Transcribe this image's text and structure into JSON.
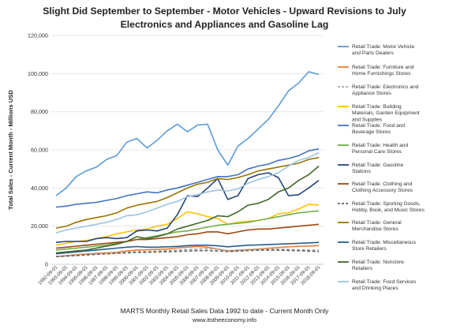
{
  "title_line1": "Slight Did September to September - Motor Vehicles - Upward Revisions to July",
  "title_line2": "Electronics and Appliances and Gasoline Lag",
  "footer_line1": "MARTS Monthly Retail Sales Data 1992 to date - Current Month Only",
  "footer_line2": "www.itstheeconomy.info",
  "chart_data": {
    "type": "line",
    "title": "Slight Did September to September - Motor Vehicles - Upward Revisions to July Electronics and Appliances and Gasoline Lag",
    "xlabel": "",
    "ylabel": "Total Sales - Current Month - Millions USD",
    "ylim": [
      0,
      120000
    ],
    "yticks": [
      "0",
      "20,000",
      "40,000",
      "60,000",
      "80,000",
      "100,000",
      "120,000"
    ],
    "grid": "horizontal",
    "legend_placement": "right",
    "x": [
      "1992-09-01",
      "1993-09-01",
      "1994-09-01",
      "1995-09-01",
      "1996-09-01",
      "1997-09-01",
      "1998-09-01",
      "1999-09-01",
      "2000-09-01",
      "2001-09-01",
      "2002-09-01",
      "2003-09-01",
      "2004-09-01",
      "2005-09-01",
      "2006-09-01",
      "2007-09-01",
      "2008-09-01",
      "2009-09-01",
      "2010-09-01",
      "2011-09-01",
      "2012-09-01",
      "2013-09-01",
      "2014-09-01",
      "2015-09-01",
      "2016-09-01",
      "2017-09-01",
      "2018-09-01"
    ],
    "series": [
      {
        "name": "Retail Trade: Motor Vehicle and Parts Dealers",
        "color": "#5b9bd5",
        "dash": "solid",
        "values": [
          36000,
          40000,
          46000,
          49000,
          51000,
          55000,
          57000,
          64000,
          66000,
          61000,
          65000,
          70000,
          73500,
          69500,
          73000,
          73500,
          60000,
          52000,
          62000,
          66000,
          71000,
          76000,
          83000,
          91000,
          95000,
          101000,
          99500
        ]
      },
      {
        "name": "Retail Trade: Furniture and Home Furnishings Stores",
        "color": "#ed7d31",
        "dash": "solid",
        "values": [
          4000,
          4500,
          5000,
          5400,
          5700,
          6000,
          6300,
          7000,
          7500,
          7600,
          7800,
          8000,
          8600,
          9000,
          9300,
          9000,
          8000,
          7000,
          7300,
          7600,
          8000,
          8400,
          8800,
          9200,
          9400,
          9600,
          9800
        ]
      },
      {
        "name": "Retail Trade: Electronics and Appliance Stores",
        "color": "#a5a5a5",
        "dash": "dash",
        "values": [
          4000,
          4300,
          4700,
          5000,
          5300,
          5600,
          5900,
          6300,
          6600,
          6700,
          6900,
          7100,
          7500,
          7800,
          8000,
          8200,
          8000,
          7200,
          7500,
          7700,
          7900,
          7900,
          7900,
          7800,
          7600,
          7500,
          7400
        ]
      },
      {
        "name": "Retail Trade: Building Materials, Garden Equipment and Supplies",
        "color": "#ffc000",
        "dash": "solid",
        "values": [
          10000,
          11000,
          12000,
          12500,
          13500,
          14500,
          16000,
          17000,
          18000,
          18500,
          20000,
          21000,
          24000,
          27500,
          26500,
          25000,
          24000,
          21000,
          22000,
          22500,
          23000,
          24000,
          26500,
          27000,
          29000,
          31500,
          31000
        ]
      },
      {
        "name": "Retail Trade: Food and Beverage Stores",
        "color": "#4472c4",
        "dash": "solid",
        "values": [
          30000,
          30500,
          31500,
          32000,
          32500,
          33500,
          34500,
          36000,
          37000,
          38000,
          37500,
          39000,
          40000,
          41500,
          43000,
          44500,
          46000,
          46000,
          47000,
          50000,
          51500,
          52500,
          54500,
          55500,
          57000,
          59500,
          60500
        ]
      },
      {
        "name": "Retail Trade: Health and Personal Care Stores",
        "color": "#70ad47",
        "dash": "solid",
        "values": [
          7500,
          8000,
          8500,
          9000,
          9500,
          10000,
          11000,
          12000,
          13000,
          14000,
          15000,
          16000,
          17000,
          17500,
          18500,
          19500,
          20500,
          21000,
          21500,
          22000,
          23000,
          24000,
          25000,
          26000,
          27000,
          27500,
          28000
        ]
      },
      {
        "name": "Retail Trade: Gasoline Stations",
        "color": "#264478",
        "dash": "solid",
        "values": [
          11500,
          12000,
          12000,
          12000,
          13500,
          14000,
          13500,
          14000,
          17500,
          18000,
          17500,
          19000,
          26000,
          36000,
          35500,
          40000,
          45000,
          34000,
          36000,
          45000,
          47000,
          48000,
          45500,
          36000,
          36500,
          40000,
          44000
        ]
      },
      {
        "name": "Retail Trade: Clothing and Clothing Accessory Stores",
        "color": "#9e480e",
        "dash": "solid",
        "values": [
          8500,
          9000,
          9500,
          10000,
          10500,
          11000,
          11500,
          12000,
          13000,
          13000,
          13500,
          14000,
          14500,
          15500,
          16000,
          17000,
          17000,
          16000,
          17000,
          18000,
          18500,
          18500,
          19000,
          19500,
          20000,
          20500,
          21000
        ]
      },
      {
        "name": "Retail Trade: Sporting Goods, Hobby, Book, and Music Stores",
        "color": "#636363",
        "dash": "dash",
        "values": [
          4000,
          4300,
          4600,
          4900,
          5200,
          5500,
          5800,
          6000,
          6300,
          6300,
          6500,
          6600,
          6800,
          7000,
          7100,
          7200,
          7000,
          6700,
          6900,
          7200,
          7400,
          7400,
          7400,
          7300,
          7100,
          6900,
          6700
        ]
      },
      {
        "name": "Retail Trade: General Merchandise Stores",
        "color": "#997300",
        "dash": "solid",
        "values": [
          19000,
          20000,
          22000,
          23500,
          24500,
          25500,
          27000,
          29500,
          31000,
          32000,
          33000,
          35000,
          37500,
          40000,
          42000,
          43000,
          45000,
          44500,
          45500,
          47000,
          49000,
          50000,
          51000,
          52000,
          53000,
          55000,
          56000
        ]
      },
      {
        "name": "Retail Trade: Miscellaneous Store Retailers",
        "color": "#255e91",
        "dash": "solid",
        "values": [
          5500,
          6000,
          6500,
          7000,
          7500,
          8000,
          8500,
          9000,
          9300,
          9000,
          9000,
          9200,
          9400,
          9800,
          10000,
          10000,
          9700,
          9200,
          9600,
          10000,
          10200,
          10400,
          10600,
          10800,
          11000,
          11200,
          11500
        ]
      },
      {
        "name": "Retail Trade: Nonstore Retailers",
        "color": "#43682b",
        "dash": "solid",
        "values": [
          6000,
          6500,
          7000,
          7500,
          8500,
          9500,
          10500,
          12000,
          14500,
          13500,
          14500,
          16000,
          18500,
          20000,
          21500,
          23000,
          25500,
          25000,
          27500,
          31000,
          32000,
          34000,
          38000,
          40000,
          44000,
          47000,
          51500
        ]
      },
      {
        "name": "Retail Trade: Food Services and Drinking Places",
        "color": "#9dc3e6",
        "dash": "solid",
        "values": [
          16500,
          18000,
          19000,
          20000,
          21000,
          22000,
          23500,
          25500,
          26000,
          27500,
          29500,
          31500,
          33000,
          35500,
          36500,
          38000,
          39000,
          38500,
          39500,
          42500,
          44500,
          46000,
          48000,
          51500,
          54500,
          56000,
          58500
        ]
      }
    ]
  }
}
